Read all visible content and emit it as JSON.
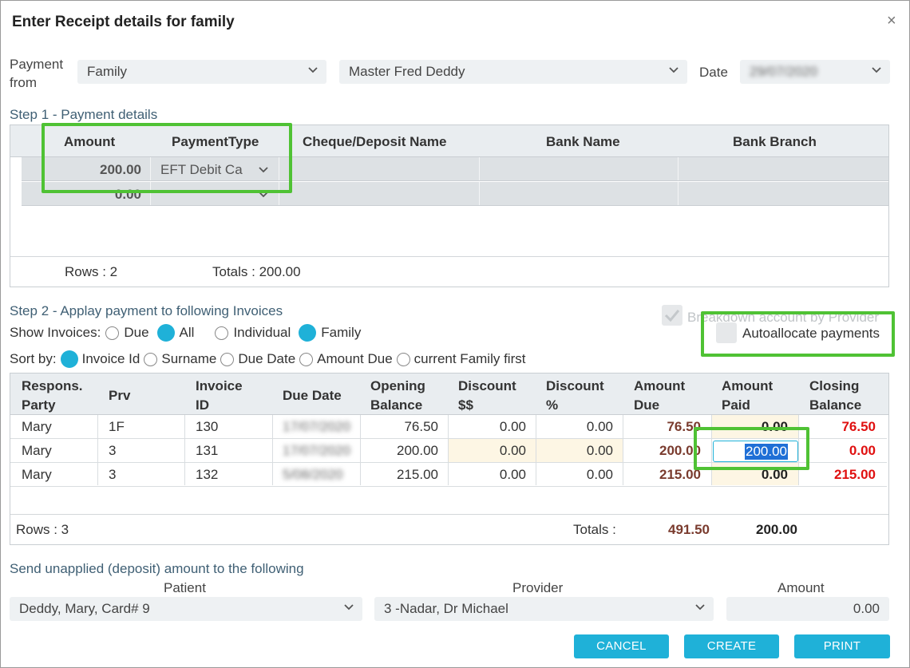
{
  "dialog": {
    "title": "Enter Receipt details for family",
    "close_glyph": "×"
  },
  "header": {
    "payment_from_label_line1": "Payment",
    "payment_from_label_line2": "from",
    "payment_from_value": "Family",
    "payer_value": "Master Fred  Deddy",
    "date_label": "Date",
    "date_value": "29/07/2020"
  },
  "step1": {
    "label": "Step 1 - Payment details",
    "columns": [
      "Amount",
      "PaymentType",
      "Cheque/Deposit Name",
      "Bank Name",
      "Bank Branch"
    ],
    "rows": [
      {
        "amount": "200.00",
        "payment_type": "EFT Debit Ca"
      },
      {
        "amount": "0.00",
        "payment_type": ""
      }
    ],
    "rows_label": "Rows : 2",
    "totals_label": "Totals : 200.00"
  },
  "step2": {
    "label": "Step 2 - Applay payment to following Invoices",
    "breakdown_label": "Breakdown account by Provider",
    "autoallocate_label": "Autoallocate payments",
    "show_invoices_label": "Show Invoices:",
    "show_options": [
      "Due",
      "All",
      "Individual",
      "Family"
    ],
    "sort_by_label": "Sort by:",
    "sort_options": [
      "Invoice Id",
      "Surname",
      "Due Date",
      "Amount Due",
      "current Family first"
    ],
    "columns": [
      [
        "Respons.",
        "Party"
      ],
      [
        "Prv",
        ""
      ],
      [
        "Invoice",
        "ID"
      ],
      [
        "Due Date",
        ""
      ],
      [
        "Opening",
        "Balance"
      ],
      [
        "Discount",
        "$$"
      ],
      [
        "Discount",
        "%"
      ],
      [
        "Amount",
        "Due"
      ],
      [
        "Amount",
        "Paid"
      ],
      [
        "Closing",
        "Balance"
      ]
    ],
    "rows": [
      {
        "party": "Mary",
        "prv": "1F",
        "invoice_id": "130",
        "due_date": "17/07/2020",
        "opening": "76.50",
        "disc_amt": "0.00",
        "disc_pct": "0.00",
        "amount_due": "76.50",
        "amount_paid": "0.00",
        "closing": "76.50"
      },
      {
        "party": "Mary",
        "prv": "3",
        "invoice_id": "131",
        "due_date": "17/07/2020",
        "opening": "200.00",
        "disc_amt": "0.00",
        "disc_pct": "0.00",
        "amount_due": "200.00",
        "amount_paid": "200.00",
        "closing": "0.00"
      },
      {
        "party": "Mary",
        "prv": "3",
        "invoice_id": "132",
        "due_date": "5/08/2020",
        "opening": "215.00",
        "disc_amt": "0.00",
        "disc_pct": "0.00",
        "amount_due": "215.00",
        "amount_paid": "0.00",
        "closing": "215.00"
      }
    ],
    "rows_label": "Rows : 3",
    "totals_label": "Totals :",
    "total_due": "491.50",
    "total_paid": "200.00"
  },
  "unapplied": {
    "label": "Send unapplied (deposit) amount to the following",
    "patient_label": "Patient",
    "patient_value": "Deddy, Mary, Card# 9",
    "provider_label": "Provider",
    "provider_value": "3 -Nadar, Dr Michael",
    "amount_label": "Amount",
    "amount_value": "0.00"
  },
  "buttons": {
    "cancel": "CANCEL",
    "create": "CREATE",
    "print": "PRINT"
  },
  "colors": {
    "accent": "#1fb1d8",
    "highlight": "#4fc234",
    "amount_due": "#7a3b2e",
    "closing": "#e01010"
  }
}
